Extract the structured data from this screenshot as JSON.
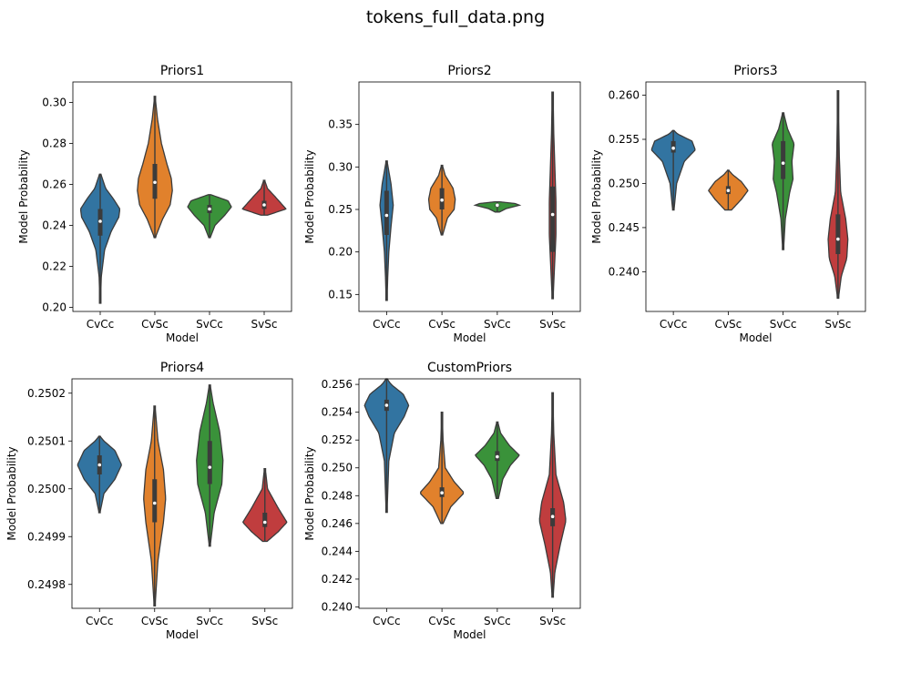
{
  "figure": {
    "title": "tokens_full_data.png"
  },
  "chart_data": [
    {
      "type": "violin",
      "title": "Priors1",
      "xlabel": "Model",
      "ylabel": "Model Probability",
      "categories": [
        "CvCc",
        "CvSc",
        "SvCc",
        "SvSc"
      ],
      "ylim": [
        0.198,
        0.31
      ],
      "yticks": [
        0.2,
        0.22,
        0.24,
        0.26,
        0.28,
        0.3
      ],
      "yticklabels": [
        "0.20",
        "0.22",
        "0.24",
        "0.26",
        "0.28",
        "0.30"
      ],
      "colors": [
        "#3274a1",
        "#e1812c",
        "#3a923a",
        "#c03d3e"
      ],
      "violins": [
        {
          "min": 0.202,
          "max": 0.265,
          "q1": 0.235,
          "median": 0.242,
          "q3": 0.248,
          "density": [
            [
              0.202,
              0.01
            ],
            [
              0.215,
              0.05
            ],
            [
              0.228,
              0.2
            ],
            [
              0.237,
              0.5
            ],
            [
              0.244,
              0.85
            ],
            [
              0.248,
              0.9
            ],
            [
              0.253,
              0.6
            ],
            [
              0.258,
              0.25
            ],
            [
              0.265,
              0.03
            ]
          ]
        },
        {
          "min": 0.234,
          "max": 0.303,
          "q1": 0.253,
          "median": 0.261,
          "q3": 0.27,
          "density": [
            [
              0.234,
              0.02
            ],
            [
              0.243,
              0.35
            ],
            [
              0.25,
              0.7
            ],
            [
              0.257,
              0.8
            ],
            [
              0.263,
              0.75
            ],
            [
              0.27,
              0.55
            ],
            [
              0.28,
              0.3
            ],
            [
              0.292,
              0.12
            ],
            [
              0.303,
              0.01
            ]
          ]
        },
        {
          "min": 0.234,
          "max": 0.255,
          "q1": 0.246,
          "median": 0.248,
          "q3": 0.25,
          "density": [
            [
              0.234,
              0.03
            ],
            [
              0.24,
              0.25
            ],
            [
              0.245,
              0.7
            ],
            [
              0.249,
              1.0
            ],
            [
              0.252,
              0.85
            ],
            [
              0.255,
              0.05
            ]
          ]
        },
        {
          "min": 0.245,
          "max": 0.262,
          "q1": 0.248,
          "median": 0.25,
          "q3": 0.252,
          "density": [
            [
              0.245,
              0.15
            ],
            [
              0.248,
              1.0
            ],
            [
              0.251,
              0.75
            ],
            [
              0.254,
              0.5
            ],
            [
              0.258,
              0.15
            ],
            [
              0.262,
              0.02
            ]
          ]
        }
      ]
    },
    {
      "type": "violin",
      "title": "Priors2",
      "xlabel": "Model",
      "ylabel": "Model Probability",
      "categories": [
        "CvCc",
        "CvSc",
        "SvCc",
        "SvSc"
      ],
      "ylim": [
        0.13,
        0.4
      ],
      "yticks": [
        0.15,
        0.2,
        0.25,
        0.3,
        0.35
      ],
      "yticklabels": [
        "0.15",
        "0.20",
        "0.25",
        "0.30",
        "0.35"
      ],
      "colors": [
        "#3274a1",
        "#e1812c",
        "#3a923a",
        "#c03d3e"
      ],
      "violins": [
        {
          "min": 0.143,
          "max": 0.307,
          "q1": 0.22,
          "median": 0.243,
          "q3": 0.272,
          "density": [
            [
              0.143,
              0.02
            ],
            [
              0.17,
              0.05
            ],
            [
              0.2,
              0.1
            ],
            [
              0.23,
              0.2
            ],
            [
              0.255,
              0.3
            ],
            [
              0.28,
              0.2
            ],
            [
              0.307,
              0.02
            ]
          ]
        },
        {
          "min": 0.22,
          "max": 0.302,
          "q1": 0.25,
          "median": 0.261,
          "q3": 0.275,
          "density": [
            [
              0.22,
              0.03
            ],
            [
              0.24,
              0.25
            ],
            [
              0.25,
              0.55
            ],
            [
              0.262,
              0.6
            ],
            [
              0.275,
              0.5
            ],
            [
              0.29,
              0.15
            ],
            [
              0.302,
              0.02
            ]
          ]
        },
        {
          "min": 0.247,
          "max": 0.259,
          "q1": 0.253,
          "median": 0.255,
          "q3": 0.256,
          "density": [
            [
              0.247,
              0.1
            ],
            [
              0.251,
              0.4
            ],
            [
              0.255,
              1.0
            ],
            [
              0.257,
              0.8
            ],
            [
              0.259,
              0.1
            ]
          ]
        },
        {
          "min": 0.145,
          "max": 0.388,
          "q1": 0.2,
          "median": 0.244,
          "q3": 0.277,
          "density": [
            [
              0.145,
              0.02
            ],
            [
              0.18,
              0.08
            ],
            [
              0.22,
              0.15
            ],
            [
              0.26,
              0.15
            ],
            [
              0.3,
              0.1
            ],
            [
              0.34,
              0.05
            ],
            [
              0.388,
              0.02
            ]
          ]
        }
      ]
    },
    {
      "type": "violin",
      "title": "Priors3",
      "xlabel": "Model",
      "ylabel": "Model Probability",
      "categories": [
        "CvCc",
        "CvSc",
        "SvCc",
        "SvSc"
      ],
      "ylim": [
        0.2355,
        0.2615
      ],
      "yticks": [
        0.24,
        0.245,
        0.25,
        0.255,
        0.26
      ],
      "yticklabels": [
        "0.240",
        "0.245",
        "0.250",
        "0.255",
        "0.260"
      ],
      "colors": [
        "#3274a1",
        "#e1812c",
        "#3a923a",
        "#c03d3e"
      ],
      "violins": [
        {
          "min": 0.247,
          "max": 0.256,
          "q1": 0.2535,
          "median": 0.254,
          "q3": 0.2548,
          "density": [
            [
              0.247,
              0.03
            ],
            [
              0.25,
              0.15
            ],
            [
              0.2525,
              0.5
            ],
            [
              0.2538,
              1.0
            ],
            [
              0.2548,
              0.85
            ],
            [
              0.2556,
              0.2
            ],
            [
              0.256,
              0.02
            ]
          ]
        },
        {
          "min": 0.247,
          "max": 0.2515,
          "q1": 0.2488,
          "median": 0.2492,
          "q3": 0.2497,
          "density": [
            [
              0.247,
              0.15
            ],
            [
              0.2482,
              0.6
            ],
            [
              0.2492,
              0.9
            ],
            [
              0.2502,
              0.6
            ],
            [
              0.251,
              0.2
            ],
            [
              0.2515,
              0.02
            ]
          ]
        },
        {
          "min": 0.2425,
          "max": 0.258,
          "q1": 0.2505,
          "median": 0.2523,
          "q3": 0.2548,
          "density": [
            [
              0.2425,
              0.02
            ],
            [
              0.246,
              0.1
            ],
            [
              0.249,
              0.3
            ],
            [
              0.2505,
              0.45
            ],
            [
              0.2525,
              0.4
            ],
            [
              0.2545,
              0.5
            ],
            [
              0.2562,
              0.2
            ],
            [
              0.258,
              0.02
            ]
          ]
        },
        {
          "min": 0.237,
          "max": 0.2605,
          "q1": 0.242,
          "median": 0.2437,
          "q3": 0.2465,
          "density": [
            [
              0.237,
              0.02
            ],
            [
              0.2395,
              0.15
            ],
            [
              0.2415,
              0.4
            ],
            [
              0.2437,
              0.45
            ],
            [
              0.246,
              0.35
            ],
            [
              0.249,
              0.12
            ],
            [
              0.253,
              0.06
            ],
            [
              0.2605,
              0.01
            ]
          ]
        }
      ]
    },
    {
      "type": "violin",
      "title": "Priors4",
      "xlabel": "Model",
      "ylabel": "Model Probability",
      "categories": [
        "CvCc",
        "CvSc",
        "SvCc",
        "SvSc"
      ],
      "ylim": [
        0.24975,
        0.25023
      ],
      "yticks": [
        0.2498,
        0.2499,
        0.25,
        0.2501,
        0.2502
      ],
      "yticklabels": [
        "0.2498",
        "0.2499",
        "0.2500",
        "0.2501",
        "0.2502"
      ],
      "colors": [
        "#3274a1",
        "#e1812c",
        "#3a923a",
        "#c03d3e"
      ],
      "violins": [
        {
          "min": 0.24995,
          "max": 0.25011,
          "q1": 0.25003,
          "median": 0.25005,
          "q3": 0.25007,
          "density": [
            [
              0.24995,
              0.02
            ],
            [
              0.24999,
              0.2
            ],
            [
              0.25002,
              0.7
            ],
            [
              0.25005,
              1.0
            ],
            [
              0.25008,
              0.7
            ],
            [
              0.2501,
              0.2
            ],
            [
              0.25011,
              0.02
            ]
          ]
        },
        {
          "min": 0.249755,
          "max": 0.250173,
          "q1": 0.24993,
          "median": 0.24997,
          "q3": 0.25002,
          "density": [
            [
              0.249755,
              0.02
            ],
            [
              0.24985,
              0.15
            ],
            [
              0.24993,
              0.4
            ],
            [
              0.24998,
              0.5
            ],
            [
              0.25004,
              0.4
            ],
            [
              0.2501,
              0.15
            ],
            [
              0.250173,
              0.02
            ]
          ]
        },
        {
          "min": 0.24988,
          "max": 0.250217,
          "q1": 0.25001,
          "median": 0.250045,
          "q3": 0.2501,
          "density": [
            [
              0.24988,
              0.02
            ],
            [
              0.24995,
              0.2
            ],
            [
              0.25001,
              0.55
            ],
            [
              0.25006,
              0.6
            ],
            [
              0.25012,
              0.45
            ],
            [
              0.25018,
              0.15
            ],
            [
              0.250217,
              0.02
            ]
          ]
        },
        {
          "min": 0.24989,
          "max": 0.250042,
          "q1": 0.24992,
          "median": 0.24993,
          "q3": 0.24995,
          "density": [
            [
              0.24989,
              0.1
            ],
            [
              0.24991,
              0.6
            ],
            [
              0.24993,
              1.0
            ],
            [
              0.24996,
              0.6
            ],
            [
              0.25,
              0.12
            ],
            [
              0.250042,
              0.02
            ]
          ]
        }
      ]
    },
    {
      "type": "violin",
      "title": "CustomPriors",
      "xlabel": "Model",
      "ylabel": "Model Probability",
      "categories": [
        "CvCc",
        "CvSc",
        "SvCc",
        "SvSc"
      ],
      "ylim": [
        0.2399,
        0.2564
      ],
      "yticks": [
        0.24,
        0.242,
        0.244,
        0.246,
        0.248,
        0.25,
        0.252,
        0.254,
        0.256
      ],
      "yticklabels": [
        "0.240",
        "0.242",
        "0.244",
        "0.246",
        "0.248",
        "0.250",
        "0.252",
        "0.254",
        "0.256"
      ],
      "colors": [
        "#3274a1",
        "#e1812c",
        "#3a923a",
        "#c03d3e"
      ],
      "violins": [
        {
          "min": 0.2468,
          "max": 0.2564,
          "q1": 0.2541,
          "median": 0.2545,
          "q3": 0.2549,
          "density": [
            [
              0.2468,
              0.02
            ],
            [
              0.2505,
              0.1
            ],
            [
              0.2525,
              0.35
            ],
            [
              0.2537,
              0.8
            ],
            [
              0.2545,
              1.0
            ],
            [
              0.2553,
              0.75
            ],
            [
              0.256,
              0.2
            ],
            [
              0.2564,
              0.02
            ]
          ]
        },
        {
          "min": 0.246,
          "max": 0.254,
          "q1": 0.2479,
          "median": 0.2482,
          "q3": 0.2486,
          "density": [
            [
              0.246,
              0.05
            ],
            [
              0.2472,
              0.4
            ],
            [
              0.2482,
              1.0
            ],
            [
              0.249,
              0.55
            ],
            [
              0.25,
              0.15
            ],
            [
              0.252,
              0.05
            ],
            [
              0.254,
              0.01
            ]
          ]
        },
        {
          "min": 0.2478,
          "max": 0.2533,
          "q1": 0.2505,
          "median": 0.2508,
          "q3": 0.2512,
          "density": [
            [
              0.2478,
              0.05
            ],
            [
              0.2492,
              0.25
            ],
            [
              0.2502,
              0.6
            ],
            [
              0.2509,
              1.0
            ],
            [
              0.2516,
              0.55
            ],
            [
              0.2525,
              0.15
            ],
            [
              0.2533,
              0.02
            ]
          ]
        },
        {
          "min": 0.2407,
          "max": 0.2554,
          "q1": 0.2458,
          "median": 0.2465,
          "q3": 0.2471,
          "density": [
            [
              0.2407,
              0.02
            ],
            [
              0.2425,
              0.1
            ],
            [
              0.2445,
              0.35
            ],
            [
              0.2462,
              0.6
            ],
            [
              0.2475,
              0.5
            ],
            [
              0.2495,
              0.15
            ],
            [
              0.2525,
              0.05
            ],
            [
              0.2554,
              0.01
            ]
          ]
        }
      ]
    }
  ]
}
